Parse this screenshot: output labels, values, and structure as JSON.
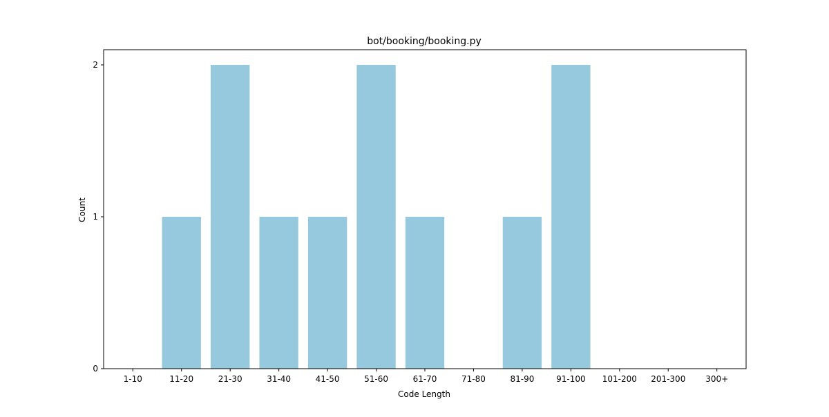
{
  "chart_data": {
    "type": "bar",
    "title": "bot/booking/booking.py",
    "xlabel": "Code Length",
    "ylabel": "Count",
    "categories": [
      "1-10",
      "11-20",
      "21-30",
      "31-40",
      "41-50",
      "51-60",
      "61-70",
      "71-80",
      "81-90",
      "91-100",
      "101-200",
      "201-300",
      "300+"
    ],
    "values": [
      0,
      1,
      2,
      1,
      1,
      2,
      1,
      0,
      1,
      2,
      0,
      0,
      0
    ],
    "yticks": [
      0,
      1,
      2
    ],
    "ylim": [
      0,
      2.1
    ],
    "grid": false,
    "legend": "none",
    "bar_color": "#96c9dd"
  }
}
